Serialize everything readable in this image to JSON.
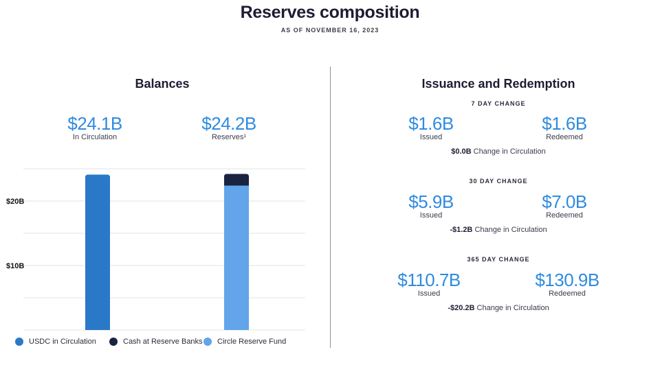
{
  "header": {
    "title": "Reserves composition",
    "subtitle": "AS OF NOVEMBER 16, 2023"
  },
  "balances": {
    "title": "Balances",
    "circulation_value": "$24.1B",
    "circulation_label": "In Circulation",
    "reserves_value": "$24.2B",
    "reserves_label": "Reserves¹"
  },
  "issuance": {
    "title": "Issuance and Redemption",
    "issued_label": "Issued",
    "redeemed_label": "Redeemed",
    "change_suffix": "Change in Circulation",
    "periods": [
      {
        "label": "7 DAY CHANGE",
        "issued": "$1.6B",
        "redeemed": "$1.6B",
        "change": "$0.0B"
      },
      {
        "label": "30 DAY CHANGE",
        "issued": "$5.9B",
        "redeemed": "$7.0B",
        "change": "-$1.2B"
      },
      {
        "label": "365 DAY CHANGE",
        "issued": "$110.7B",
        "redeemed": "$130.9B",
        "change": "-$20.2B"
      }
    ]
  },
  "colors": {
    "usdc": "#2a79c9",
    "cash": "#1a2340",
    "fund": "#62a5ea",
    "accent": "#2f8be0",
    "grid": "#e3e3e8"
  },
  "chart_data": {
    "type": "bar",
    "stacked": true,
    "categories": [
      "In Circulation",
      "Reserves"
    ],
    "series": [
      {
        "name": "USDC in Circulation",
        "values": [
          24.1,
          0
        ]
      },
      {
        "name": "Cash at Reserve Banks",
        "values": [
          0,
          1.8
        ]
      },
      {
        "name": "Circle Reserve Fund",
        "values": [
          0,
          22.4
        ]
      }
    ],
    "yticks": [
      {
        "value": 10,
        "label": "$10B"
      },
      {
        "value": 20,
        "label": "$20B"
      }
    ],
    "ylim": [
      0,
      25
    ],
    "grid": true,
    "legend_position": "bottom"
  }
}
